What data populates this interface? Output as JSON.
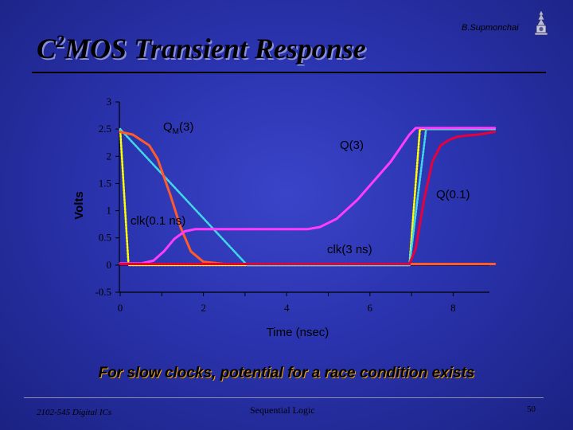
{
  "header": {
    "author": "B.Supmonchai",
    "title_prefix": "C",
    "title_sup": "2",
    "title_rest": "MOS Transient Response"
  },
  "caption": "For slow clocks, potential for a race condition exists",
  "footer": {
    "course": "2102-545 Digital ICs",
    "topic": "Sequential Logic",
    "page": "50"
  },
  "colors": {
    "qm3": "#ff5a28",
    "q3": "#ff3cff",
    "q01": "#e8003c",
    "clk01": "#ffff00",
    "clk3": "#40d8e8"
  },
  "chart_data": {
    "type": "line",
    "xlabel": "Time (nsec)",
    "ylabel": "Volts",
    "xlim": [
      0,
      9
    ],
    "ylim": [
      -0.5,
      3
    ],
    "x_ticks": [
      0,
      2,
      4,
      6,
      8
    ],
    "x_tick_labels": [
      "0",
      "2",
      "4",
      "6",
      "8"
    ],
    "y_ticks": [
      -0.5,
      0,
      0.5,
      1,
      1.5,
      2,
      2.5,
      3
    ],
    "y_tick_labels": [
      "-0.5",
      "0",
      "0.5",
      "1",
      "1.5",
      "2",
      "2.5",
      "3"
    ],
    "grid": false,
    "series": [
      {
        "name": "clk(0.1 ns)",
        "color": "#ffff00",
        "dashed": true,
        "x": [
          0,
          0.2,
          3.05,
          5.1,
          6.95,
          7.2,
          9
        ],
        "y": [
          2.5,
          0,
          0,
          0,
          0,
          2.5,
          2.5
        ]
      },
      {
        "name": "clk(3 ns)",
        "color": "#40d8e8",
        "dashed": true,
        "x": [
          0,
          3.05,
          4.4,
          6.95,
          7.35,
          9
        ],
        "y": [
          2.5,
          0,
          0,
          0,
          2.5,
          2.5
        ]
      },
      {
        "name": "QM(3)",
        "color": "#ff5a28",
        "dashed": false,
        "x": [
          0,
          0.3,
          0.7,
          0.9,
          1.2,
          1.45,
          1.7,
          2.0,
          2.5,
          3.0,
          9
        ],
        "y": [
          2.45,
          2.4,
          2.2,
          1.95,
          1.3,
          0.7,
          0.25,
          0.06,
          0.02,
          0.02,
          0.02
        ]
      },
      {
        "name": "Q(3)",
        "color": "#ff3cff",
        "dashed": false,
        "x": [
          0,
          0.5,
          0.8,
          1.05,
          1.3,
          1.55,
          1.8,
          2.2,
          4.5,
          4.8,
          5.2,
          5.7,
          6.5,
          6.95,
          7.1,
          9
        ],
        "y": [
          0.03,
          0.03,
          0.08,
          0.25,
          0.48,
          0.62,
          0.66,
          0.66,
          0.66,
          0.7,
          0.85,
          1.2,
          1.9,
          2.4,
          2.52,
          2.52
        ]
      },
      {
        "name": "Q(0.1)",
        "color": "#e8003c",
        "dashed": false,
        "x": [
          0,
          6.95,
          7.1,
          7.3,
          7.5,
          7.7,
          7.9,
          8.1,
          8.3,
          8.6,
          9
        ],
        "y": [
          0.02,
          0.02,
          0.3,
          1.2,
          1.9,
          2.2,
          2.3,
          2.36,
          2.38,
          2.4,
          2.45
        ]
      }
    ],
    "annotations": [
      {
        "text": "Q",
        "sub": "M",
        "suffix": "(3)",
        "series": "QM(3)"
      },
      {
        "text": "Q(3)",
        "series": "Q(3)"
      },
      {
        "text": "Q(0.1)",
        "series": "Q(0.1)"
      },
      {
        "text": "clk(0.1 ns)",
        "series": "clk(0.1 ns)"
      },
      {
        "text": "clk(3 ns)",
        "series": "clk(3 ns)"
      }
    ]
  }
}
